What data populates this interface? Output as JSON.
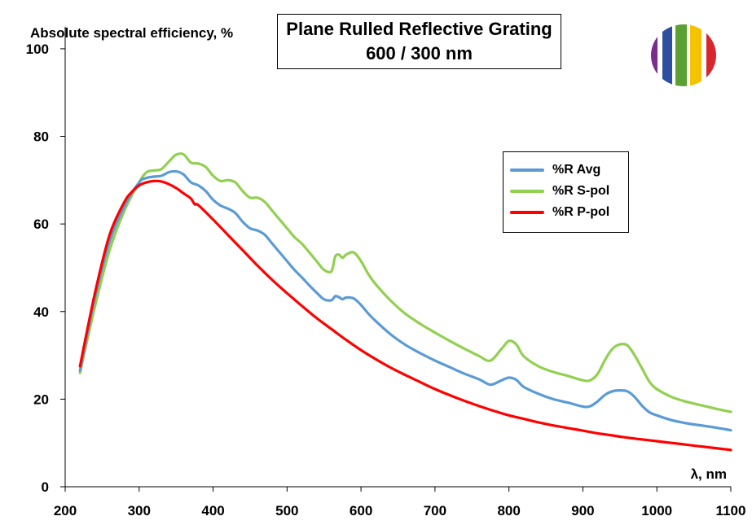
{
  "chart_data": {
    "type": "line",
    "title": [
      "Plane Rulled Reflective Grating",
      "600 / 300 nm"
    ],
    "ylabel": "Absolute spectral efficiency, %",
    "xlabel": "λ, nm",
    "xlim": [
      200,
      1100
    ],
    "ylim": [
      0,
      105
    ],
    "xticks": [
      200,
      300,
      400,
      500,
      600,
      700,
      800,
      900,
      1000,
      1100
    ],
    "yticks": [
      0,
      20,
      40,
      60,
      80,
      100
    ],
    "grid": false,
    "legend_position": "upper-right",
    "series": [
      {
        "name": "%R Avg",
        "color": "#5b9bd5",
        "points": [
          [
            220,
            26.5
          ],
          [
            240,
            43
          ],
          [
            260,
            56
          ],
          [
            280,
            64
          ],
          [
            300,
            69.5
          ],
          [
            310,
            70.5
          ],
          [
            320,
            70.8
          ],
          [
            330,
            71
          ],
          [
            340,
            71.8
          ],
          [
            350,
            72
          ],
          [
            360,
            71.3
          ],
          [
            370,
            69.5
          ],
          [
            380,
            68.8
          ],
          [
            390,
            67.5
          ],
          [
            400,
            65.5
          ],
          [
            410,
            64.2
          ],
          [
            420,
            63.5
          ],
          [
            430,
            62.5
          ],
          [
            440,
            60.5
          ],
          [
            450,
            59
          ],
          [
            460,
            58.5
          ],
          [
            470,
            57.5
          ],
          [
            480,
            55.5
          ],
          [
            490,
            53.5
          ],
          [
            500,
            51.5
          ],
          [
            510,
            49.5
          ],
          [
            520,
            47.8
          ],
          [
            530,
            46
          ],
          [
            540,
            44.3
          ],
          [
            550,
            42.8
          ],
          [
            560,
            42.6
          ],
          [
            565,
            43.5
          ],
          [
            570,
            43.3
          ],
          [
            575,
            42.8
          ],
          [
            580,
            43.2
          ],
          [
            590,
            43
          ],
          [
            600,
            41.5
          ],
          [
            610,
            39.5
          ],
          [
            620,
            37.8
          ],
          [
            640,
            34.8
          ],
          [
            660,
            32.4
          ],
          [
            680,
            30.5
          ],
          [
            700,
            28.8
          ],
          [
            720,
            27.3
          ],
          [
            740,
            25.8
          ],
          [
            760,
            24.5
          ],
          [
            775,
            23.3
          ],
          [
            790,
            24.3
          ],
          [
            800,
            24.9
          ],
          [
            810,
            24.4
          ],
          [
            820,
            22.8
          ],
          [
            840,
            21.2
          ],
          [
            860,
            20
          ],
          [
            880,
            19.2
          ],
          [
            900,
            18.3
          ],
          [
            910,
            18.4
          ],
          [
            920,
            19.5
          ],
          [
            930,
            21
          ],
          [
            940,
            21.8
          ],
          [
            950,
            22
          ],
          [
            960,
            21.8
          ],
          [
            970,
            20.5
          ],
          [
            980,
            18.5
          ],
          [
            990,
            17
          ],
          [
            1000,
            16.3
          ],
          [
            1020,
            15.2
          ],
          [
            1040,
            14.5
          ],
          [
            1060,
            14
          ],
          [
            1080,
            13.5
          ],
          [
            1100,
            12.9
          ]
        ]
      },
      {
        "name": "%R S-pol",
        "color": "#92d050",
        "points": [
          [
            220,
            26
          ],
          [
            240,
            41
          ],
          [
            260,
            54
          ],
          [
            280,
            63
          ],
          [
            300,
            69.5
          ],
          [
            310,
            71.8
          ],
          [
            320,
            72.2
          ],
          [
            330,
            72.5
          ],
          [
            340,
            74.2
          ],
          [
            350,
            75.8
          ],
          [
            360,
            75.9
          ],
          [
            370,
            74
          ],
          [
            380,
            73.8
          ],
          [
            390,
            73
          ],
          [
            400,
            71
          ],
          [
            410,
            69.8
          ],
          [
            420,
            70
          ],
          [
            430,
            69.5
          ],
          [
            440,
            67.5
          ],
          [
            450,
            66
          ],
          [
            460,
            66
          ],
          [
            470,
            65
          ],
          [
            480,
            63
          ],
          [
            490,
            61
          ],
          [
            500,
            59
          ],
          [
            510,
            57
          ],
          [
            520,
            55.5
          ],
          [
            530,
            53.5
          ],
          [
            540,
            51.5
          ],
          [
            550,
            49.5
          ],
          [
            560,
            49.2
          ],
          [
            565,
            52.5
          ],
          [
            570,
            53
          ],
          [
            575,
            52.3
          ],
          [
            580,
            53
          ],
          [
            590,
            53.5
          ],
          [
            600,
            51.5
          ],
          [
            610,
            48.5
          ],
          [
            620,
            46.2
          ],
          [
            640,
            42.5
          ],
          [
            660,
            39.5
          ],
          [
            680,
            37.2
          ],
          [
            700,
            35.2
          ],
          [
            720,
            33.3
          ],
          [
            740,
            31.5
          ],
          [
            760,
            29.8
          ],
          [
            775,
            28.8
          ],
          [
            790,
            31.5
          ],
          [
            800,
            33.3
          ],
          [
            810,
            32.5
          ],
          [
            820,
            29.8
          ],
          [
            840,
            27.5
          ],
          [
            860,
            26.2
          ],
          [
            880,
            25.3
          ],
          [
            900,
            24.3
          ],
          [
            910,
            24.3
          ],
          [
            920,
            25.8
          ],
          [
            930,
            29
          ],
          [
            940,
            31.5
          ],
          [
            950,
            32.5
          ],
          [
            960,
            32.3
          ],
          [
            970,
            30
          ],
          [
            980,
            27
          ],
          [
            990,
            24
          ],
          [
            1000,
            22.3
          ],
          [
            1020,
            20.5
          ],
          [
            1040,
            19.4
          ],
          [
            1060,
            18.6
          ],
          [
            1080,
            17.8
          ],
          [
            1100,
            17.1
          ]
        ]
      },
      {
        "name": "%R P-pol",
        "color": "#ff0000",
        "points": [
          [
            220,
            27.5
          ],
          [
            240,
            44
          ],
          [
            260,
            57.5
          ],
          [
            280,
            65
          ],
          [
            290,
            67.3
          ],
          [
            300,
            68.8
          ],
          [
            310,
            69.5
          ],
          [
            320,
            69.8
          ],
          [
            330,
            69.7
          ],
          [
            340,
            69.1
          ],
          [
            350,
            68.2
          ],
          [
            360,
            67
          ],
          [
            370,
            65.8
          ],
          [
            375,
            64.5
          ],
          [
            380,
            64.3
          ],
          [
            400,
            61
          ],
          [
            420,
            57.5
          ],
          [
            440,
            54
          ],
          [
            460,
            50.5
          ],
          [
            480,
            47.2
          ],
          [
            500,
            44.2
          ],
          [
            520,
            41.3
          ],
          [
            540,
            38.5
          ],
          [
            560,
            36
          ],
          [
            580,
            33.5
          ],
          [
            600,
            31.2
          ],
          [
            620,
            29.1
          ],
          [
            640,
            27.2
          ],
          [
            660,
            25.5
          ],
          [
            680,
            23.9
          ],
          [
            700,
            22.3
          ],
          [
            720,
            20.9
          ],
          [
            740,
            19.6
          ],
          [
            760,
            18.4
          ],
          [
            780,
            17.3
          ],
          [
            800,
            16.3
          ],
          [
            820,
            15.5
          ],
          [
            840,
            14.7
          ],
          [
            860,
            14
          ],
          [
            880,
            13.4
          ],
          [
            900,
            12.8
          ],
          [
            920,
            12.2
          ],
          [
            940,
            11.7
          ],
          [
            960,
            11.2
          ],
          [
            980,
            10.8
          ],
          [
            1000,
            10.4
          ],
          [
            1020,
            10
          ],
          [
            1040,
            9.6
          ],
          [
            1060,
            9.2
          ],
          [
            1080,
            8.8
          ],
          [
            1100,
            8.4
          ]
        ]
      }
    ]
  },
  "logo": {
    "stripe_colors": [
      "#7b2d8e",
      "#2e4fa0",
      "#5aa032",
      "#f5c400",
      "#d9262c"
    ]
  }
}
